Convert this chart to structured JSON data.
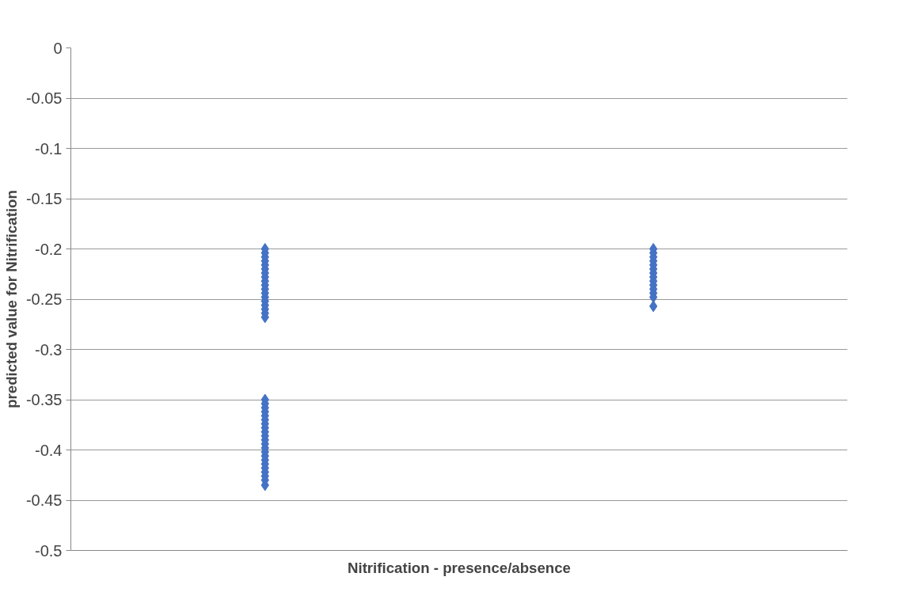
{
  "chart_data": {
    "type": "scatter",
    "xlabel": "Nitrification - presence/absence",
    "ylabel": "predicted value for Nitrification",
    "categories": [
      null,
      null
    ],
    "ylim": [
      -0.5,
      0
    ],
    "yticks": [
      0,
      -0.05,
      -0.1,
      -0.15,
      -0.2,
      -0.25,
      -0.3,
      -0.35,
      -0.4,
      -0.45,
      -0.5
    ],
    "tick_labels": "y",
    "grid": "y",
    "marker": "diamond",
    "series": [
      {
        "color": "#4472c4",
        "values": [
          -0.2,
          -0.2
        ]
      },
      {
        "color": "#4472c4",
        "values": [
          -0.204,
          -0.204
        ]
      },
      {
        "color": "#4472c4",
        "values": [
          -0.208,
          -0.208
        ]
      },
      {
        "color": "#4472c4",
        "values": [
          -0.212,
          -0.212
        ]
      },
      {
        "color": "#4472c4",
        "values": [
          -0.216,
          -0.216
        ]
      },
      {
        "color": "#4472c4",
        "values": [
          -0.22,
          -0.22
        ]
      },
      {
        "color": "#4472c4",
        "values": [
          -0.224,
          -0.224
        ]
      },
      {
        "color": "#4472c4",
        "values": [
          -0.228,
          -0.228
        ]
      },
      {
        "color": "#4472c4",
        "values": [
          -0.232,
          -0.232
        ]
      },
      {
        "color": "#4472c4",
        "values": [
          -0.236,
          -0.236
        ]
      },
      {
        "color": "#4472c4",
        "values": [
          -0.24,
          -0.24
        ]
      },
      {
        "color": "#4472c4",
        "values": [
          -0.244,
          -0.244
        ]
      },
      {
        "color": "#4472c4",
        "values": [
          -0.248,
          -0.248
        ]
      },
      {
        "color": "#4472c4",
        "values": [
          -0.252,
          -0.257
        ]
      },
      {
        "color": "#4472c4",
        "values": [
          -0.256,
          null
        ]
      },
      {
        "color": "#4472c4",
        "values": [
          -0.26,
          null
        ]
      },
      {
        "color": "#4472c4",
        "values": [
          -0.264,
          null
        ]
      },
      {
        "color": "#4472c4",
        "values": [
          -0.268,
          null
        ]
      },
      {
        "color": "#4472c4",
        "values": [
          -0.35,
          null
        ]
      },
      {
        "color": "#4472c4",
        "values": [
          -0.354,
          null
        ]
      },
      {
        "color": "#4472c4",
        "values": [
          -0.358,
          null
        ]
      },
      {
        "color": "#4472c4",
        "values": [
          -0.362,
          null
        ]
      },
      {
        "color": "#4472c4",
        "values": [
          -0.366,
          null
        ]
      },
      {
        "color": "#4472c4",
        "values": [
          -0.37,
          null
        ]
      },
      {
        "color": "#4472c4",
        "values": [
          -0.374,
          null
        ]
      },
      {
        "color": "#4472c4",
        "values": [
          -0.378,
          null
        ]
      },
      {
        "color": "#4472c4",
        "values": [
          -0.382,
          null
        ]
      },
      {
        "color": "#4472c4",
        "values": [
          -0.386,
          null
        ]
      },
      {
        "color": "#4472c4",
        "values": [
          -0.39,
          null
        ]
      },
      {
        "color": "#4472c4",
        "values": [
          -0.394,
          null
        ]
      },
      {
        "color": "#4472c4",
        "values": [
          -0.398,
          null
        ]
      },
      {
        "color": "#4472c4",
        "values": [
          -0.402,
          null
        ]
      },
      {
        "color": "#4472c4",
        "values": [
          -0.406,
          null
        ]
      },
      {
        "color": "#4472c4",
        "values": [
          -0.41,
          null
        ]
      },
      {
        "color": "#4472c4",
        "values": [
          -0.414,
          null
        ]
      },
      {
        "color": "#4472c4",
        "values": [
          -0.418,
          null
        ]
      },
      {
        "color": "#4472c4",
        "values": [
          -0.422,
          null
        ]
      },
      {
        "color": "#4472c4",
        "values": [
          -0.426,
          null
        ]
      },
      {
        "color": "#4472c4",
        "values": [
          -0.43,
          null
        ]
      },
      {
        "color": "#4472c4",
        "values": [
          -0.435,
          null
        ]
      }
    ]
  }
}
